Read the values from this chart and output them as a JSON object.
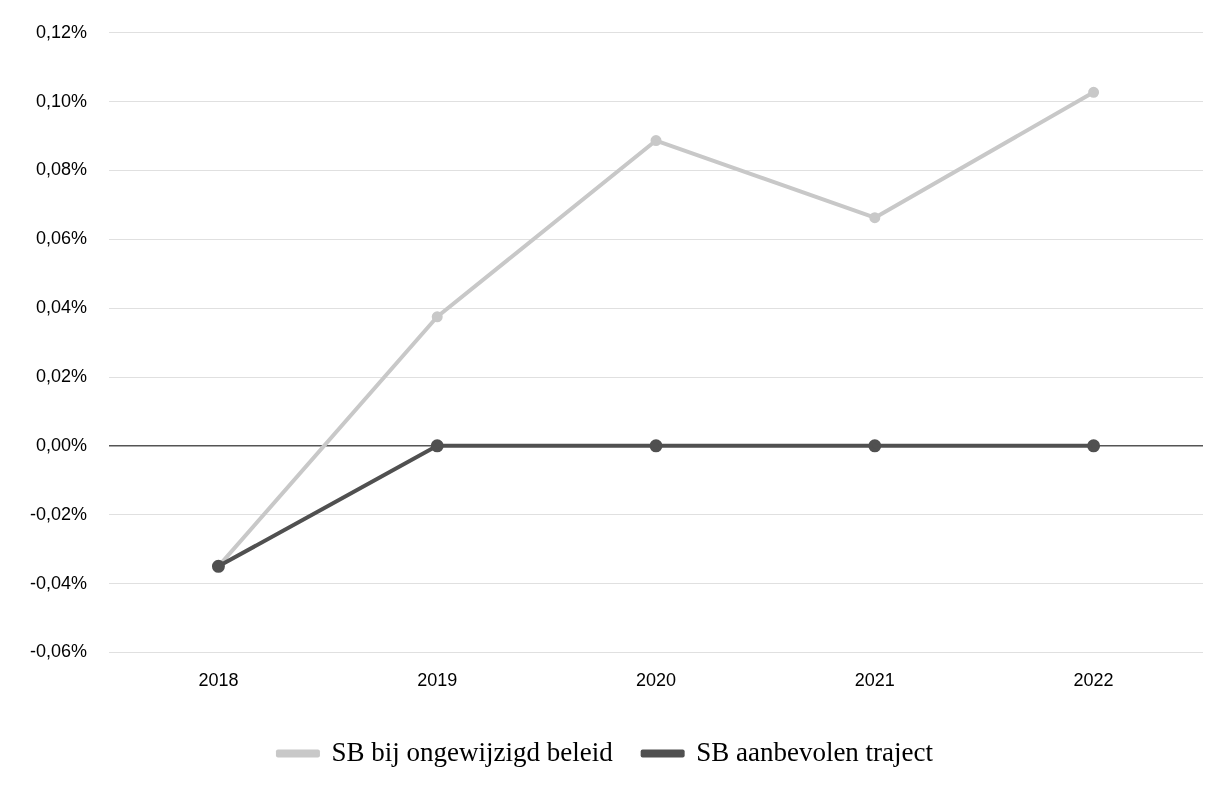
{
  "chart_data": {
    "type": "line",
    "categories": [
      "2018",
      "2019",
      "2020",
      "2021",
      "2022"
    ],
    "series": [
      {
        "name": "SB bij ongewijzigd beleid",
        "color": "#c8c8c8",
        "values": [
          -0.035,
          0.0375,
          0.0887,
          0.0663,
          0.1027
        ]
      },
      {
        "name": "SB aanbevolen traject",
        "color": "#505050",
        "values": [
          -0.035,
          0,
          0,
          0,
          0
        ]
      }
    ],
    "ylim": [
      -0.06,
      0.12
    ],
    "yticks": [
      {
        "value": -0.06,
        "label": "-0,06%"
      },
      {
        "value": -0.04,
        "label": "-0,04%"
      },
      {
        "value": -0.02,
        "label": "-0,02%"
      },
      {
        "value": 0,
        "label": "0,00%"
      },
      {
        "value": 0.02,
        "label": "0,02%"
      },
      {
        "value": 0.04,
        "label": "0,04%"
      },
      {
        "value": 0.06,
        "label": "0,06%"
      },
      {
        "value": 0.08,
        "label": "0,08%"
      },
      {
        "value": 0.1,
        "label": "0,10%"
      },
      {
        "value": 0.12,
        "label": "0,12%"
      }
    ],
    "grid": "y",
    "legend": "bottom",
    "marker": "circle",
    "line_style": "solid"
  }
}
